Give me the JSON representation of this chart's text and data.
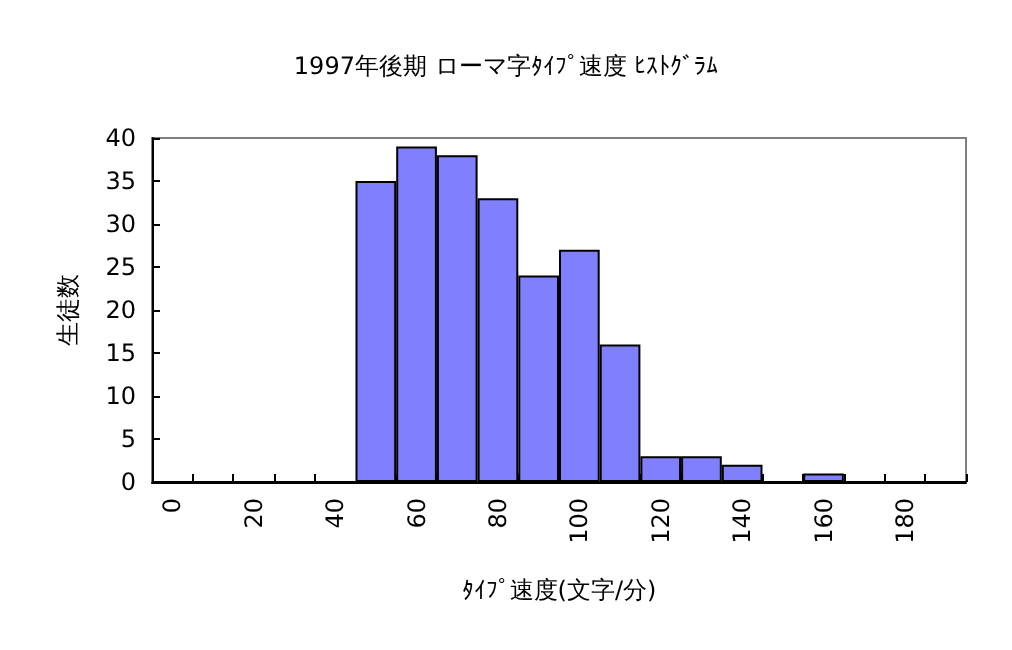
{
  "chart_data": {
    "type": "bar",
    "title": "1997年後期 ローマ字ﾀｲﾌﾟ速度 ﾋｽﾄｸﾞﾗﾑ",
    "xlabel": "ﾀｲﾌﾟ速度(文字/分)",
    "ylabel": "生徒数",
    "categories": [
      "0",
      null,
      "20",
      null,
      "40",
      null,
      "60",
      null,
      "80",
      null,
      "100",
      null,
      "120",
      null,
      "140",
      null,
      "160",
      null,
      "180",
      null
    ],
    "values": [
      0,
      0,
      0,
      0,
      0,
      35,
      39,
      38,
      33,
      24,
      27,
      16,
      3,
      3,
      2,
      0,
      1,
      0,
      0,
      0
    ],
    "color": "#8080ff",
    "ylim": [
      0,
      40
    ],
    "yticks": [
      0,
      5,
      10,
      15,
      20,
      25,
      30,
      35,
      40
    ],
    "grid": false
  }
}
